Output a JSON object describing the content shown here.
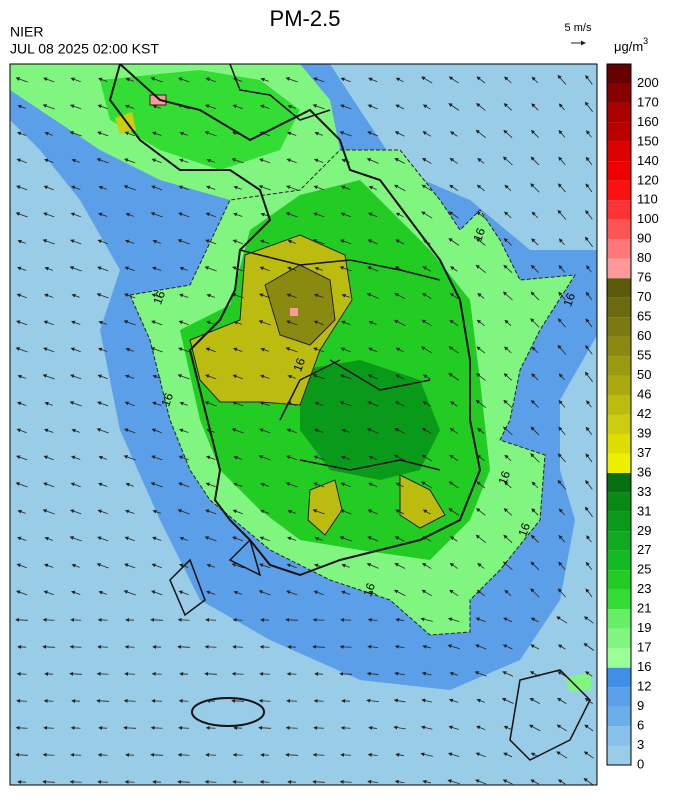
{
  "title": "PM-2.5",
  "agency": "NIER",
  "timestamp": "JUL 08 2025 02:00 KST",
  "wind_scale": "5 m/s",
  "unit": "μg/m",
  "unit_sup": "3",
  "contour_labels": [
    "16",
    "16",
    "16",
    "16",
    "16",
    "16",
    "16",
    "16"
  ],
  "legend": {
    "levels": [
      0,
      3,
      6,
      9,
      12,
      16,
      17,
      19,
      21,
      23,
      25,
      27,
      29,
      31,
      33,
      36,
      37,
      39,
      42,
      46,
      50,
      55,
      60,
      65,
      70,
      76,
      80,
      90,
      100,
      110,
      120,
      140,
      150,
      160,
      170,
      200
    ],
    "colors": [
      "#99cce6",
      "#88c0ea",
      "#6aaeea",
      "#5a9fe8",
      "#3f8fe6",
      "#99ff99",
      "#80f580",
      "#66ee66",
      "#33dd33",
      "#22cc22",
      "#11bb22",
      "#10aa20",
      "#0a9a1a",
      "#088a15",
      "#067010",
      "#eeee00",
      "#dddd00",
      "#cccc10",
      "#bbbb10",
      "#aaaa10",
      "#9a9a10",
      "#8a8a10",
      "#7a7a10",
      "#6a6a10",
      "#5a5a0a",
      "#ff9999",
      "#ff7777",
      "#ff5555",
      "#ff3333",
      "#ff1111",
      "#ee0000",
      "#dd0000",
      "#bb0000",
      "#aa0000",
      "#880000",
      "#660000"
    ]
  }
}
